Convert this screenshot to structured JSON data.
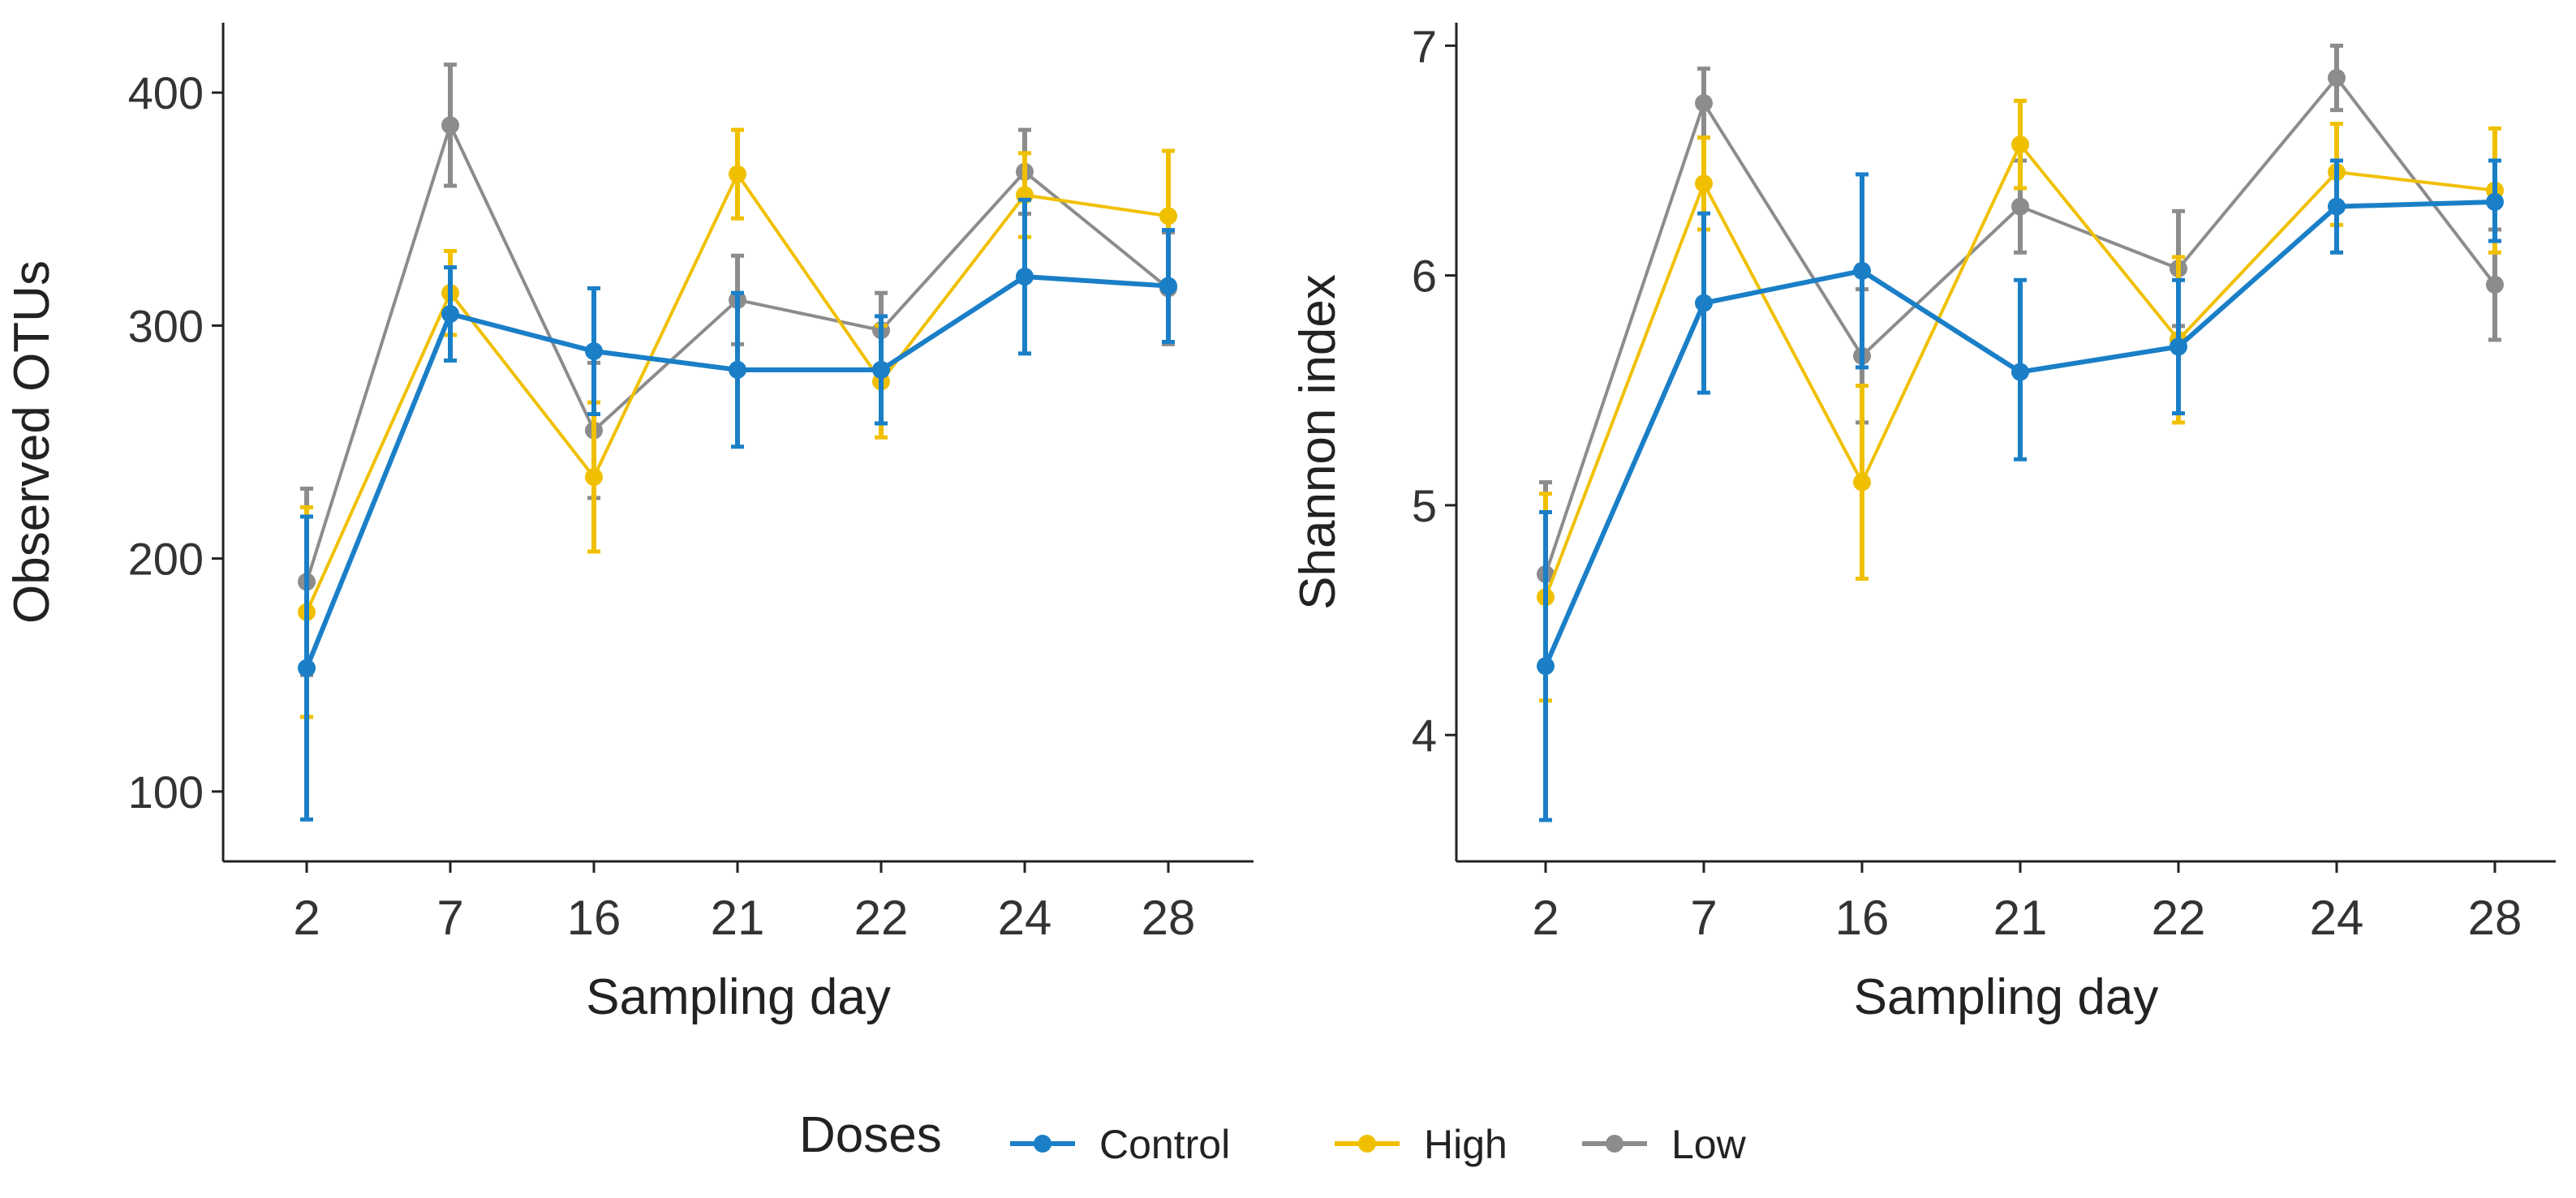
{
  "legend": {
    "title": "Doses",
    "items": [
      {
        "label": "Control",
        "color": "#1a7fc7"
      },
      {
        "label": "High",
        "color": "#f0c000"
      },
      {
        "label": "Low",
        "color": "#8c8c8c"
      }
    ]
  },
  "chart_data": [
    {
      "type": "line",
      "title": "",
      "xlabel": "Sampling day",
      "ylabel": "Observed OTUs",
      "categories": [
        "2",
        "7",
        "16",
        "21",
        "22",
        "24",
        "28"
      ],
      "ylim": [
        70,
        430
      ],
      "yticks": [
        100,
        200,
        300,
        400
      ],
      "grid": false,
      "series": [
        {
          "name": "Control",
          "values": [
            153,
            305,
            289,
            281,
            281,
            321,
            317
          ],
          "err_low": [
            88,
            285,
            262,
            248,
            258,
            288,
            293
          ],
          "err_high": [
            218,
            325,
            316,
            314,
            304,
            354,
            341
          ]
        },
        {
          "name": "High",
          "values": [
            177,
            314,
            235,
            365,
            276,
            356,
            347
          ],
          "err_low": [
            132,
            296,
            203,
            346,
            252,
            338,
            319
          ],
          "err_high": [
            222,
            332,
            267,
            384,
            300,
            374,
            375
          ]
        },
        {
          "name": "Low",
          "values": [
            190,
            386,
            255,
            311,
            298,
            366,
            316
          ],
          "err_low": [
            150,
            360,
            226,
            292,
            282,
            348,
            292
          ],
          "err_high": [
            230,
            412,
            284,
            330,
            314,
            384,
            340
          ]
        }
      ]
    },
    {
      "type": "line",
      "title": "",
      "xlabel": "Sampling day",
      "ylabel": "Shannon index",
      "categories": [
        "2",
        "7",
        "16",
        "21",
        "22",
        "24",
        "28"
      ],
      "ylim": [
        3.45,
        7.1
      ],
      "yticks": [
        4,
        5,
        6,
        7
      ],
      "grid": false,
      "series": [
        {
          "name": "Control",
          "values": [
            4.3,
            5.88,
            6.02,
            5.58,
            5.69,
            6.3,
            6.32
          ],
          "err_low": [
            3.63,
            5.49,
            5.6,
            5.2,
            5.4,
            6.1,
            6.15
          ],
          "err_high": [
            4.97,
            6.27,
            6.44,
            5.98,
            5.98,
            6.5,
            6.5
          ]
        },
        {
          "name": "High",
          "values": [
            4.6,
            6.4,
            5.1,
            6.57,
            5.72,
            6.45,
            6.37
          ],
          "err_low": [
            4.15,
            6.2,
            4.68,
            6.38,
            5.36,
            6.22,
            6.1
          ],
          "err_high": [
            5.05,
            6.6,
            5.52,
            6.76,
            6.08,
            6.66,
            6.64
          ]
        },
        {
          "name": "Low",
          "values": [
            4.7,
            6.75,
            5.65,
            6.3,
            6.03,
            6.86,
            5.96
          ],
          "err_low": [
            4.3,
            6.6,
            5.36,
            6.1,
            5.78,
            6.72,
            5.72
          ],
          "err_high": [
            5.1,
            6.9,
            5.94,
            6.5,
            6.28,
            7.0,
            6.2
          ]
        }
      ]
    }
  ]
}
